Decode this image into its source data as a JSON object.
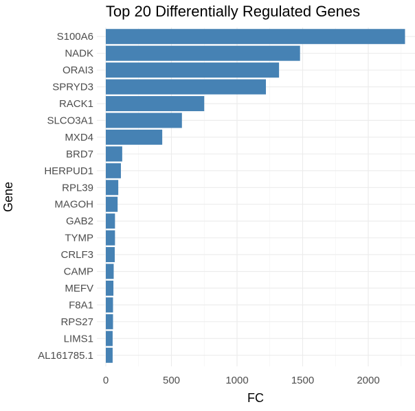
{
  "chart_data": {
    "type": "bar",
    "orientation": "horizontal",
    "title": "Top 20 Differentially Regulated Genes",
    "xlabel": "FC",
    "ylabel": "Gene",
    "categories": [
      "S100A6",
      "NADK",
      "ORAI3",
      "SPRYD3",
      "RACK1",
      "SLCO3A1",
      "MXD4",
      "BRD7",
      "HERPUD1",
      "RPL39",
      "MAGOH",
      "GAB2",
      "TYMP",
      "CRLF3",
      "CAMP",
      "MEFV",
      "F8A1",
      "RPS27",
      "LIMS1",
      "AL161785.1"
    ],
    "values": [
      2280,
      1480,
      1320,
      1220,
      750,
      580,
      430,
      125,
      115,
      95,
      90,
      70,
      70,
      68,
      60,
      58,
      55,
      55,
      52,
      52
    ],
    "xlim": [
      0,
      2300
    ],
    "xticks": [
      0,
      500,
      1000,
      1500,
      2000
    ],
    "grid": true,
    "bar_color": "#4682B4"
  }
}
